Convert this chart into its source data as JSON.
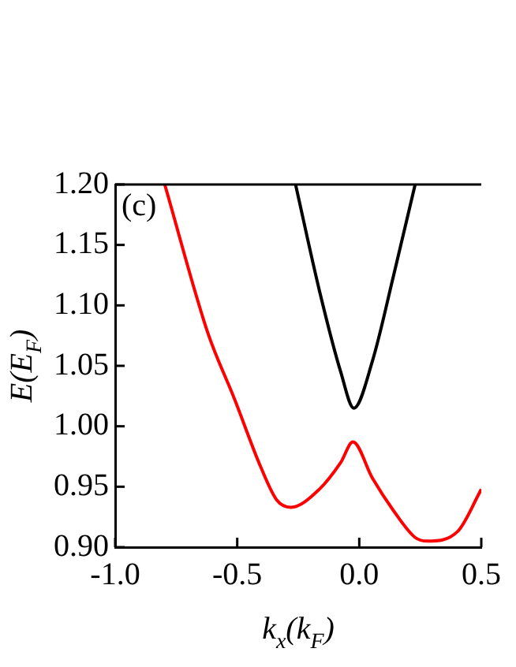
{
  "chart_data": {
    "type": "line",
    "xlabel": "k$_{x}$(k$_{F}$)",
    "ylabel": "E(E$_{F}$)",
    "annotations": [
      "(c)"
    ],
    "xlim": [
      -1.0,
      0.5
    ],
    "xticks": [
      {
        "value": -1,
        "label": "-1.0"
      },
      -0.5,
      {
        "value": 0,
        "label": "0.0"
      },
      0.5
    ],
    "ylim": [
      0.9,
      1.2
    ],
    "yticks": [
      {
        "value": 0.9,
        "label": "0.90"
      },
      0.95,
      {
        "value": 1,
        "label": "1.00"
      },
      1.05,
      {
        "value": 1.1,
        "label": "1.10"
      },
      1.15,
      {
        "value": 1.2,
        "label": "1.20"
      }
    ],
    "grid": false,
    "legend": false,
    "marker": "none",
    "line_style": "solid",
    "series": [
      {
        "color": "#ff0000",
        "x": [
          -0.797,
          -0.62,
          -0.512,
          -0.403,
          -0.338,
          -0.28,
          -0.163,
          -0.076,
          -0.026,
          0.054,
          0.141,
          0.229,
          0.28,
          0.403,
          0.49,
          0.5
        ],
        "values": [
          1.2,
          1.077,
          1.023,
          0.966,
          0.939,
          0.933,
          0.948,
          0.97,
          0.987,
          0.957,
          0.93,
          0.908,
          0.905,
          0.913,
          0.944,
          0.948
        ]
      },
      {
        "color": "#000000",
        "x": [
          -0.261,
          -0.163,
          -0.076,
          -0.022,
          0.054,
          0.141,
          0.229
        ],
        "values": [
          1.2,
          1.112,
          1.045,
          1.015,
          1.054,
          1.125,
          1.2
        ]
      }
    ]
  }
}
